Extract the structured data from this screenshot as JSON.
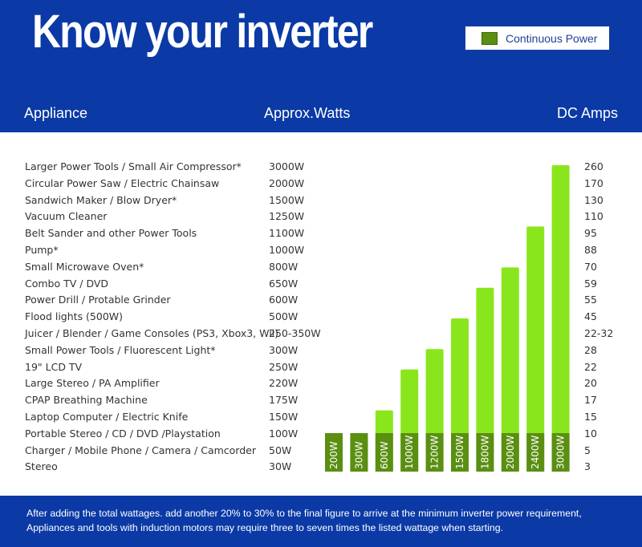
{
  "header": {
    "title": "Know your inverter"
  },
  "legend": {
    "label": "Continuous Power",
    "color": "#5a8f12"
  },
  "table": {
    "headers": {
      "appliance": "Appliance",
      "watts": "Approx.Watts",
      "amps": "DC Amps"
    },
    "rows": [
      {
        "appliance": "Larger Power Tools / Small Air Compressor*",
        "watts": "3000W",
        "amps": "260"
      },
      {
        "appliance": "Circular Power Saw / Electric Chainsaw",
        "watts": "2000W",
        "amps": "170"
      },
      {
        "appliance": "Sandwich Maker / Blow Dryer*",
        "watts": "1500W",
        "amps": "130"
      },
      {
        "appliance": "Vacuum Cleaner",
        "watts": "1250W",
        "amps": "110"
      },
      {
        "appliance": "Belt Sander and other Power Tools",
        "watts": "1100W",
        "amps": "95"
      },
      {
        "appliance": "Pump*",
        "watts": "1000W",
        "amps": "88"
      },
      {
        "appliance": "Small Microwave Oven*",
        "watts": "800W",
        "amps": "70"
      },
      {
        "appliance": "Combo TV / DVD",
        "watts": "650W",
        "amps": "59"
      },
      {
        "appliance": "Power Drill / Protable Grinder",
        "watts": "600W",
        "amps": "55"
      },
      {
        "appliance": "Flood lights (500W)",
        "watts": "500W",
        "amps": "45"
      },
      {
        "appliance": "Juicer / Blender / Game Consoles (PS3, Xbox3, Wii)",
        "watts": "250-350W",
        "amps": "22-32"
      },
      {
        "appliance": "Small Power Tools / Fluorescent Light*",
        "watts": "300W",
        "amps": "28"
      },
      {
        "appliance": "19\" LCD TV",
        "watts": "250W",
        "amps": "22"
      },
      {
        "appliance": "Large Stereo / PA Amplifier",
        "watts": "220W",
        "amps": "20"
      },
      {
        "appliance": "CPAP Breathing Machine",
        "watts": "175W",
        "amps": "17"
      },
      {
        "appliance": "Laptop Computer / Electric Knife",
        "watts": "150W",
        "amps": "15"
      },
      {
        "appliance": "Portable Stereo / CD / DVD /Playstation",
        "watts": "100W",
        "amps": "10"
      },
      {
        "appliance": "Charger / Mobile Phone / Camera / Camcorder",
        "watts": "50W",
        "amps": "5"
      },
      {
        "appliance": "Stereo",
        "watts": "30W",
        "amps": "3"
      }
    ]
  },
  "chart_data": {
    "type": "bar",
    "categories": [
      "200W",
      "300W",
      "600W",
      "1000W",
      "1200W",
      "1500W",
      "1800W",
      "2000W",
      "2400W",
      "3000W"
    ],
    "values": [
      200,
      300,
      600,
      1000,
      1200,
      1500,
      1800,
      2000,
      2400,
      3000
    ],
    "bar_color": "#8ae61c",
    "label_band_color": "#5a8f12",
    "label_color": "#ffffff"
  },
  "footer": {
    "note1": "After adding the total wattages. add another 20% to 30% to the final figure to arrive at the minimum inverter power requirement,",
    "note2": "Appliances and tools with induction motors may require three to seven times the listed wattage when starting."
  }
}
